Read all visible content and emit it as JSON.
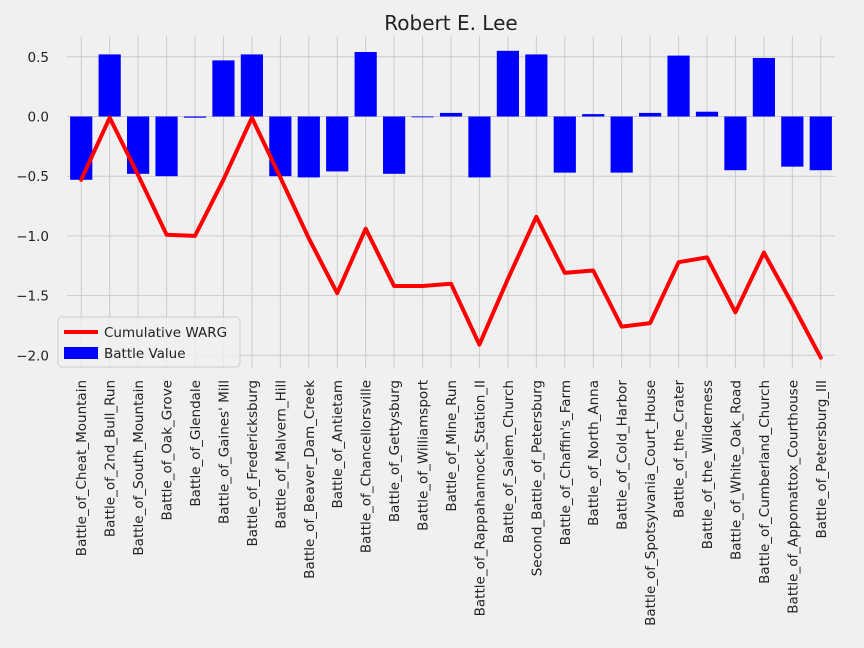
{
  "chart_data": {
    "type": "bar+line",
    "title": "Robert E. Lee",
    "xlabel": "",
    "ylabel": "",
    "ylim": [
      -2.1,
      0.65
    ],
    "y_ticks": [
      0.5,
      0.0,
      -0.5,
      -1.0,
      -1.5,
      -2.0
    ],
    "y_tick_labels": [
      "0.5",
      "0.0",
      "−0.5",
      "−1.0",
      "−1.5",
      "−2.0"
    ],
    "grid": true,
    "legend_position": "lower-left",
    "categories": [
      "Battle_of_Cheat_Mountain",
      "Battle_of_2nd_Bull_Run",
      "Battle_of_South_Mountain",
      "Battle_of_Oak_Grove",
      "Battle_of_Glendale",
      "Battle_of_Gaines' Mill",
      "Battle_of_Fredericksburg",
      "Battle_of_Malvern_Hill",
      "Battle_of_Beaver_Dam_Creek",
      "Battle_of_Antietam",
      "Battle_of_Chancellorsville",
      "Battle_of_Gettysburg",
      "Battle_of_Williamsport",
      "Battle_of_Mine_Run",
      "Battle_of_Rappahannock_Station_II",
      "Battle_of_Salem_Church",
      "Second_Battle_of_Petersburg",
      "Battle_of_Chaffin's_Farm",
      "Battle_of_North_Anna",
      "Battle_of_Cold_Harbor",
      "Battle_of_Spotsylvania_Court_House",
      "Battle_of_the_Crater",
      "Battle_of_the_Wilderness",
      "Battle_of_White_Oak_Road",
      "Battle_of_Cumberland_Church",
      "Battle_of_Appomattox_Courthouse",
      "Battle_of_Petersburg_III"
    ],
    "series": [
      {
        "name": "Battle Value",
        "kind": "bar",
        "color": "#0000ff",
        "values": [
          -0.53,
          0.52,
          -0.48,
          -0.5,
          -0.01,
          0.47,
          0.52,
          -0.5,
          -0.51,
          -0.46,
          0.54,
          -0.48,
          0.0,
          0.03,
          -0.51,
          0.55,
          0.52,
          -0.47,
          0.02,
          -0.47,
          0.03,
          0.51,
          0.04,
          -0.45,
          0.49,
          -0.42,
          -0.45
        ]
      },
      {
        "name": "Cumulative WARG",
        "kind": "line",
        "color": "#ff0000",
        "values": [
          -0.53,
          -0.01,
          -0.49,
          -0.99,
          -1.0,
          -0.53,
          -0.01,
          -0.51,
          -1.02,
          -1.48,
          -0.94,
          -1.42,
          -1.42,
          -1.4,
          -1.91,
          -1.36,
          -0.84,
          -1.31,
          -1.29,
          -1.76,
          -1.73,
          -1.22,
          -1.18,
          -1.64,
          -1.14,
          -1.57,
          -2.02
        ]
      }
    ]
  }
}
